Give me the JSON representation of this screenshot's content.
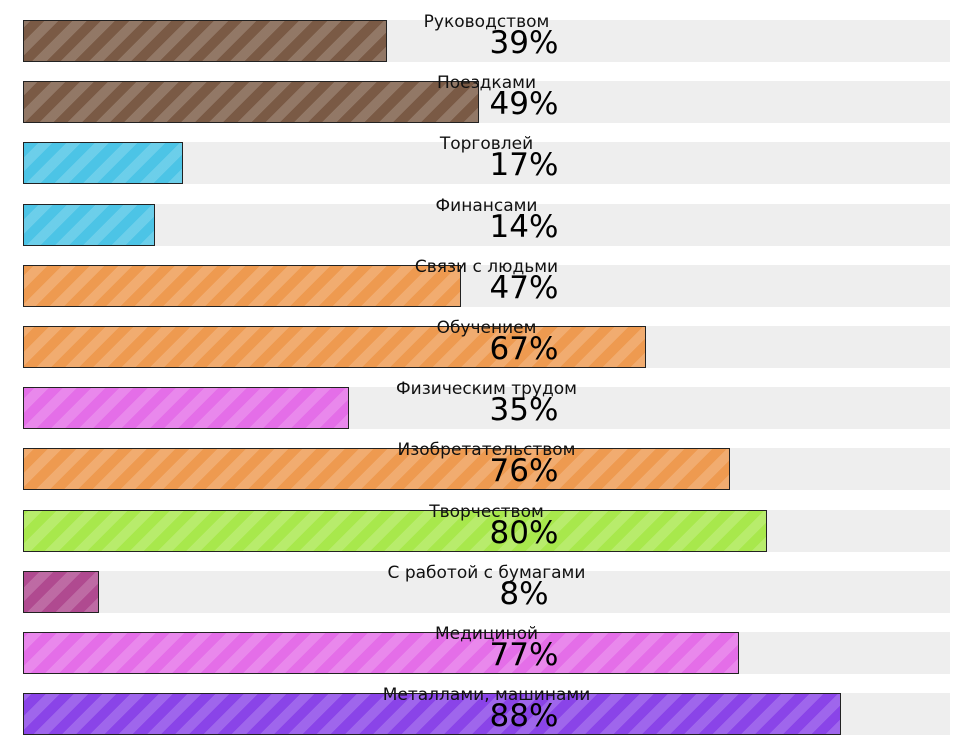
{
  "chart_data": {
    "type": "bar",
    "orientation": "horizontal",
    "ylim": [
      0,
      100
    ],
    "unit": "%",
    "categories": [
      "Руководством",
      "Поездками",
      "Торговлей",
      "Финансами",
      "Связи с людьми",
      "Обучением",
      "Физическим трудом",
      "Изобретательством",
      "Творчеством",
      "С работой с бумагами",
      "Медициной",
      "Металлами, машинами"
    ],
    "values": [
      39,
      49,
      17,
      14,
      47,
      67,
      35,
      76,
      80,
      8,
      77,
      88
    ],
    "value_labels": [
      "39%",
      "49%",
      "17%",
      "14%",
      "47%",
      "67%",
      "35%",
      "76%",
      "80%",
      "8%",
      "77%",
      "88%"
    ],
    "colors": [
      "#7a5a45",
      "#7a5a45",
      "#4cc4e6",
      "#4cc4e6",
      "#ee9a50",
      "#ee9a50",
      "#e46ee8",
      "#ee9a50",
      "#a8e84c",
      "#b04a90",
      "#e46ee8",
      "#8a44e8"
    ],
    "track_color": "#eeeeee",
    "fill_pattern": "diagonal-stripes"
  }
}
